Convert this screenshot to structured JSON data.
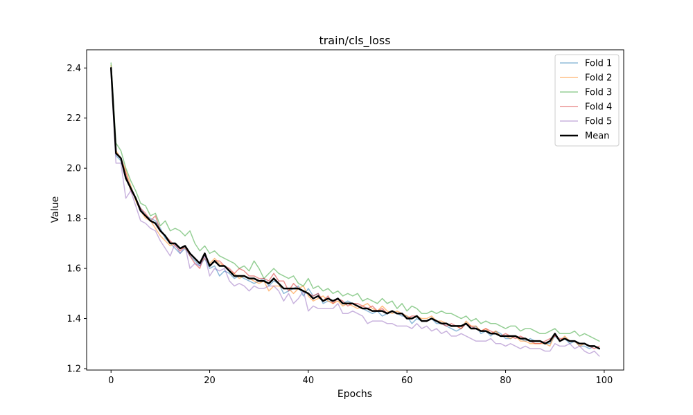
{
  "chart_data": {
    "type": "line",
    "title": "train/cls_loss",
    "xlabel": "Epochs",
    "ylabel": "Value",
    "xlim": [
      -4.95,
      103.95
    ],
    "ylim": [
      1.1945,
      2.4725
    ],
    "xticks": [
      0,
      20,
      40,
      60,
      80,
      100
    ],
    "yticks": [
      1.2,
      1.4,
      1.6,
      1.8,
      2.0,
      2.2,
      2.4
    ],
    "grid": false,
    "legend_position": "top-right",
    "x": [
      0,
      1,
      2,
      3,
      4,
      5,
      6,
      7,
      8,
      9,
      10,
      11,
      12,
      13,
      14,
      15,
      16,
      17,
      18,
      19,
      20,
      21,
      22,
      23,
      24,
      25,
      26,
      27,
      28,
      29,
      30,
      31,
      32,
      33,
      34,
      35,
      36,
      37,
      38,
      39,
      40,
      41,
      42,
      43,
      44,
      45,
      46,
      47,
      48,
      49,
      50,
      51,
      52,
      53,
      54,
      55,
      56,
      57,
      58,
      59,
      60,
      61,
      62,
      63,
      64,
      65,
      66,
      67,
      68,
      69,
      70,
      71,
      72,
      73,
      74,
      75,
      76,
      77,
      78,
      79,
      80,
      81,
      82,
      83,
      84,
      85,
      86,
      87,
      88,
      89,
      90,
      91,
      92,
      93,
      94,
      95,
      96,
      97,
      98,
      99
    ],
    "series": [
      {
        "name": "Fold 1",
        "color": "#1f77b4",
        "opacity": 0.5,
        "width": 1.5,
        "values": [
          2.4,
          2.05,
          2.03,
          1.97,
          1.92,
          1.88,
          1.84,
          1.81,
          1.8,
          1.79,
          1.76,
          1.72,
          1.7,
          1.68,
          1.66,
          1.68,
          1.65,
          1.63,
          1.61,
          1.64,
          1.6,
          1.61,
          1.57,
          1.59,
          1.58,
          1.56,
          1.57,
          1.56,
          1.55,
          1.54,
          1.55,
          1.56,
          1.53,
          1.55,
          1.54,
          1.5,
          1.51,
          1.52,
          1.53,
          1.49,
          1.52,
          1.49,
          1.5,
          1.46,
          1.47,
          1.47,
          1.48,
          1.46,
          1.47,
          1.46,
          1.45,
          1.44,
          1.43,
          1.42,
          1.43,
          1.41,
          1.42,
          1.43,
          1.42,
          1.41,
          1.41,
          1.38,
          1.4,
          1.39,
          1.39,
          1.4,
          1.38,
          1.38,
          1.37,
          1.36,
          1.35,
          1.36,
          1.38,
          1.36,
          1.37,
          1.34,
          1.35,
          1.33,
          1.35,
          1.34,
          1.32,
          1.32,
          1.33,
          1.32,
          1.31,
          1.32,
          1.31,
          1.31,
          1.3,
          1.3,
          1.33,
          1.31,
          1.32,
          1.3,
          1.31,
          1.29,
          1.29,
          1.28,
          1.29,
          1.28
        ]
      },
      {
        "name": "Fold 2",
        "color": "#ff7f0e",
        "opacity": 0.5,
        "width": 1.5,
        "values": [
          2.41,
          2.07,
          2.04,
          1.99,
          1.93,
          1.87,
          1.83,
          1.8,
          1.79,
          1.76,
          1.73,
          1.71,
          1.69,
          1.7,
          1.68,
          1.68,
          1.66,
          1.64,
          1.62,
          1.64,
          1.62,
          1.64,
          1.62,
          1.61,
          1.59,
          1.58,
          1.56,
          1.57,
          1.56,
          1.55,
          1.54,
          1.55,
          1.51,
          1.53,
          1.53,
          1.52,
          1.52,
          1.5,
          1.52,
          1.53,
          1.49,
          1.47,
          1.48,
          1.49,
          1.47,
          1.46,
          1.47,
          1.45,
          1.46,
          1.45,
          1.44,
          1.45,
          1.46,
          1.44,
          1.43,
          1.45,
          1.43,
          1.42,
          1.43,
          1.42,
          1.41,
          1.4,
          1.41,
          1.4,
          1.4,
          1.41,
          1.39,
          1.39,
          1.38,
          1.37,
          1.37,
          1.36,
          1.39,
          1.37,
          1.37,
          1.35,
          1.36,
          1.34,
          1.35,
          1.33,
          1.33,
          1.32,
          1.33,
          1.31,
          1.31,
          1.3,
          1.3,
          1.3,
          1.3,
          1.29,
          1.34,
          1.31,
          1.33,
          1.31,
          1.31,
          1.29,
          1.3,
          1.29,
          1.29,
          1.28
        ]
      },
      {
        "name": "Fold 3",
        "color": "#2ca02c",
        "opacity": 0.5,
        "width": 1.5,
        "values": [
          2.42,
          2.1,
          2.07,
          2.0,
          1.95,
          1.91,
          1.86,
          1.85,
          1.81,
          1.82,
          1.77,
          1.79,
          1.75,
          1.76,
          1.75,
          1.73,
          1.75,
          1.7,
          1.67,
          1.69,
          1.66,
          1.67,
          1.65,
          1.64,
          1.63,
          1.62,
          1.6,
          1.61,
          1.59,
          1.63,
          1.6,
          1.56,
          1.58,
          1.6,
          1.58,
          1.57,
          1.56,
          1.57,
          1.54,
          1.53,
          1.56,
          1.52,
          1.53,
          1.51,
          1.52,
          1.5,
          1.51,
          1.49,
          1.5,
          1.49,
          1.5,
          1.47,
          1.48,
          1.47,
          1.46,
          1.48,
          1.46,
          1.47,
          1.44,
          1.46,
          1.43,
          1.45,
          1.44,
          1.42,
          1.42,
          1.43,
          1.42,
          1.43,
          1.42,
          1.42,
          1.41,
          1.4,
          1.41,
          1.39,
          1.4,
          1.38,
          1.39,
          1.38,
          1.38,
          1.37,
          1.36,
          1.37,
          1.37,
          1.35,
          1.36,
          1.36,
          1.35,
          1.34,
          1.34,
          1.35,
          1.36,
          1.34,
          1.34,
          1.34,
          1.35,
          1.33,
          1.34,
          1.33,
          1.32,
          1.31
        ]
      },
      {
        "name": "Fold 4",
        "color": "#d62728",
        "opacity": 0.5,
        "width": 1.5,
        "values": [
          2.39,
          2.06,
          2.04,
          1.98,
          1.91,
          1.88,
          1.84,
          1.82,
          1.79,
          1.81,
          1.75,
          1.73,
          1.71,
          1.69,
          1.67,
          1.69,
          1.65,
          1.62,
          1.6,
          1.66,
          1.61,
          1.63,
          1.63,
          1.61,
          1.6,
          1.58,
          1.6,
          1.59,
          1.57,
          1.57,
          1.56,
          1.56,
          1.55,
          1.58,
          1.55,
          1.55,
          1.51,
          1.54,
          1.52,
          1.51,
          1.5,
          1.49,
          1.5,
          1.47,
          1.49,
          1.46,
          1.48,
          1.47,
          1.45,
          1.46,
          1.46,
          1.45,
          1.44,
          1.45,
          1.43,
          1.44,
          1.42,
          1.43,
          1.42,
          1.42,
          1.4,
          1.41,
          1.41,
          1.39,
          1.39,
          1.4,
          1.39,
          1.38,
          1.37,
          1.38,
          1.37,
          1.36,
          1.38,
          1.37,
          1.36,
          1.35,
          1.36,
          1.35,
          1.34,
          1.33,
          1.34,
          1.33,
          1.32,
          1.33,
          1.32,
          1.31,
          1.3,
          1.3,
          1.31,
          1.32,
          1.33,
          1.32,
          1.32,
          1.31,
          1.31,
          1.3,
          1.3,
          1.29,
          1.28,
          1.29
        ]
      },
      {
        "name": "Fold 5",
        "color": "#9467bd",
        "opacity": 0.5,
        "width": 1.5,
        "values": [
          2.38,
          2.02,
          2.02,
          1.88,
          1.91,
          1.85,
          1.79,
          1.78,
          1.76,
          1.75,
          1.71,
          1.68,
          1.65,
          1.7,
          1.66,
          1.69,
          1.6,
          1.62,
          1.61,
          1.65,
          1.57,
          1.6,
          1.59,
          1.6,
          1.55,
          1.53,
          1.54,
          1.53,
          1.51,
          1.53,
          1.52,
          1.52,
          1.53,
          1.53,
          1.51,
          1.47,
          1.5,
          1.46,
          1.48,
          1.51,
          1.43,
          1.45,
          1.44,
          1.44,
          1.44,
          1.44,
          1.46,
          1.42,
          1.42,
          1.43,
          1.42,
          1.41,
          1.38,
          1.39,
          1.39,
          1.39,
          1.38,
          1.38,
          1.37,
          1.37,
          1.37,
          1.36,
          1.38,
          1.36,
          1.37,
          1.35,
          1.36,
          1.34,
          1.35,
          1.33,
          1.33,
          1.34,
          1.33,
          1.32,
          1.31,
          1.31,
          1.31,
          1.32,
          1.3,
          1.3,
          1.29,
          1.3,
          1.29,
          1.28,
          1.29,
          1.28,
          1.28,
          1.28,
          1.27,
          1.27,
          1.3,
          1.29,
          1.29,
          1.3,
          1.28,
          1.29,
          1.27,
          1.26,
          1.27,
          1.25
        ]
      },
      {
        "name": "Mean",
        "color": "#000000",
        "opacity": 1,
        "width": 2.5,
        "values": [
          2.4,
          2.06,
          2.04,
          1.96,
          1.92,
          1.88,
          1.83,
          1.81,
          1.79,
          1.78,
          1.75,
          1.73,
          1.7,
          1.7,
          1.68,
          1.69,
          1.66,
          1.64,
          1.62,
          1.66,
          1.61,
          1.63,
          1.61,
          1.61,
          1.59,
          1.57,
          1.57,
          1.57,
          1.56,
          1.56,
          1.55,
          1.55,
          1.54,
          1.56,
          1.54,
          1.52,
          1.52,
          1.52,
          1.52,
          1.51,
          1.5,
          1.48,
          1.49,
          1.47,
          1.48,
          1.47,
          1.48,
          1.46,
          1.46,
          1.46,
          1.45,
          1.44,
          1.44,
          1.43,
          1.43,
          1.43,
          1.42,
          1.43,
          1.42,
          1.42,
          1.4,
          1.4,
          1.41,
          1.39,
          1.39,
          1.4,
          1.39,
          1.38,
          1.38,
          1.37,
          1.37,
          1.37,
          1.38,
          1.36,
          1.36,
          1.35,
          1.35,
          1.34,
          1.34,
          1.33,
          1.33,
          1.33,
          1.33,
          1.32,
          1.32,
          1.31,
          1.31,
          1.31,
          1.3,
          1.31,
          1.34,
          1.31,
          1.32,
          1.31,
          1.31,
          1.3,
          1.3,
          1.29,
          1.29,
          1.28
        ]
      }
    ]
  }
}
